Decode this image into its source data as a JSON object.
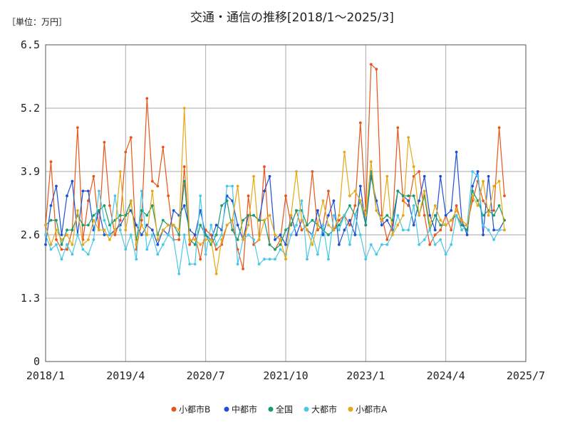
{
  "chart_data": {
    "type": "line",
    "title": "交通・通信の推移[2018/1～2025/3]",
    "unit_label": "［単位：万円］",
    "xlabel": "",
    "ylabel": "",
    "x_start": "2018/1",
    "x_end": "2025/3",
    "xlim_months": [
      0,
      90
    ],
    "ylim": [
      0,
      6.5
    ],
    "y_ticks": [
      "6.5",
      "5.2",
      "3.9",
      "2.6",
      "1.3",
      "0"
    ],
    "y_tick_values": [
      6.5,
      5.2,
      3.9,
      2.6,
      1.3,
      0
    ],
    "x_ticks": [
      "2018/1",
      "2019/4",
      "2020/7",
      "2021/10",
      "2023/1",
      "2024/4",
      "2025/7"
    ],
    "x_tick_months": [
      0,
      15,
      30,
      45,
      60,
      75,
      90
    ],
    "grid": true,
    "legend_position": "bottom-center",
    "series": [
      {
        "name": "小都市B",
        "color": "#e8561a",
        "values": [
          2.8,
          4.1,
          2.5,
          2.3,
          2.3,
          2.7,
          4.8,
          2.5,
          3.3,
          3.8,
          2.7,
          4.5,
          3.2,
          2.6,
          2.9,
          4.3,
          4.6,
          2.3,
          2.9,
          5.4,
          3.7,
          3.6,
          4.4,
          3.4,
          2.5,
          2.5,
          4.0,
          2.4,
          2.6,
          2.1,
          2.7,
          2.6,
          2.3,
          2.4,
          2.8,
          2.9,
          2.3,
          1.9,
          3.4,
          2.4,
          2.5,
          4.0,
          2.4,
          2.3,
          2.5,
          3.4,
          2.8,
          3.1,
          2.7,
          2.8,
          3.9,
          2.7,
          2.8,
          3.5,
          2.7,
          2.9,
          3.0,
          2.8,
          3.2,
          4.9,
          3.1,
          6.1,
          6.0,
          3.0,
          2.5,
          2.8,
          4.8,
          3.3,
          3.2,
          3.8,
          3.9,
          3.0,
          2.4,
          2.6,
          2.7,
          3.0,
          2.7,
          3.2,
          2.8,
          2.8,
          3.3,
          3.7,
          3.3,
          3.1,
          3.1,
          4.8,
          3.4
        ]
      },
      {
        "name": "中都市",
        "color": "#1f4fd6",
        "values": [
          2.4,
          3.2,
          3.6,
          2.6,
          3.4,
          3.7,
          2.6,
          3.5,
          3.5,
          2.7,
          3.1,
          2.6,
          2.6,
          2.7,
          2.8,
          3.0,
          3.1,
          2.8,
          2.6,
          2.8,
          2.7,
          2.4,
          2.7,
          2.6,
          3.1,
          3.0,
          3.2,
          2.7,
          2.6,
          3.1,
          2.6,
          2.5,
          2.8,
          2.7,
          3.4,
          3.3,
          2.8,
          2.5,
          3.0,
          3.0,
          2.9,
          3.5,
          3.8,
          2.5,
          2.6,
          2.4,
          3.0,
          2.6,
          2.9,
          2.7,
          2.6,
          3.1,
          2.6,
          3.0,
          3.3,
          2.4,
          2.7,
          2.9,
          2.6,
          3.6,
          2.8,
          3.8,
          3.3,
          2.8,
          2.9,
          2.7,
          3.5,
          3.4,
          3.3,
          2.8,
          3.3,
          3.8,
          3.0,
          2.7,
          3.8,
          3.0,
          3.1,
          4.3,
          2.9,
          2.6,
          3.6,
          3.9,
          2.6,
          3.8,
          2.7,
          2.7,
          2.9
        ]
      },
      {
        "name": "全国",
        "color": "#1a9c6c",
        "values": [
          2.8,
          2.9,
          2.9,
          2.4,
          2.7,
          2.7,
          3.0,
          2.8,
          2.8,
          3.0,
          3.1,
          3.2,
          2.8,
          2.9,
          3.0,
          3.0,
          3.3,
          2.5,
          3.1,
          3.0,
          3.2,
          2.6,
          2.9,
          2.8,
          2.8,
          2.6,
          3.7,
          2.5,
          2.4,
          2.8,
          2.6,
          2.4,
          2.6,
          3.2,
          3.3,
          2.7,
          2.5,
          2.9,
          3.0,
          3.0,
          2.9,
          2.9,
          2.4,
          2.3,
          2.4,
          2.7,
          2.8,
          3.1,
          3.1,
          2.8,
          2.9,
          2.8,
          2.7,
          2.6,
          2.7,
          2.8,
          3.0,
          3.2,
          3.0,
          3.3,
          2.8,
          3.9,
          3.1,
          2.9,
          3.0,
          2.9,
          3.5,
          3.4,
          3.4,
          3.4,
          3.0,
          3.4,
          2.7,
          3.0,
          2.8,
          2.8,
          2.9,
          3.0,
          2.8,
          2.7,
          3.5,
          3.3,
          3.0,
          3.1,
          3.0,
          3.2,
          2.9
        ]
      },
      {
        "name": "大都市",
        "color": "#48c8e8",
        "values": [
          2.6,
          2.3,
          2.4,
          2.1,
          2.4,
          2.2,
          2.6,
          2.3,
          2.2,
          2.5,
          3.5,
          2.9,
          2.6,
          3.4,
          2.7,
          2.3,
          2.6,
          2.1,
          3.5,
          2.3,
          2.6,
          2.2,
          2.4,
          2.6,
          2.5,
          1.8,
          2.6,
          2.0,
          2.0,
          3.4,
          2.2,
          2.8,
          2.4,
          2.6,
          3.6,
          3.6,
          2.0,
          2.5,
          2.6,
          2.5,
          2.0,
          2.1,
          2.1,
          2.1,
          2.3,
          2.2,
          2.6,
          2.8,
          3.3,
          2.1,
          2.6,
          2.2,
          2.8,
          2.1,
          3.0,
          2.7,
          3.0,
          2.4,
          3.0,
          2.6,
          2.1,
          2.4,
          2.2,
          2.4,
          2.4,
          2.6,
          3.0,
          2.7,
          2.7,
          3.2,
          2.4,
          2.5,
          2.7,
          2.4,
          2.5,
          2.2,
          2.4,
          3.0,
          2.7,
          2.8,
          3.9,
          3.8,
          2.8,
          2.7,
          2.5,
          2.7,
          2.7
        ]
      },
      {
        "name": "小都市A",
        "color": "#e6a817",
        "values": [
          2.8,
          2.4,
          2.7,
          2.5,
          2.6,
          2.4,
          3.1,
          2.4,
          2.5,
          2.9,
          2.7,
          2.7,
          2.5,
          2.7,
          3.9,
          2.7,
          3.3,
          2.4,
          2.8,
          2.6,
          3.5,
          2.5,
          2.7,
          2.8,
          2.8,
          2.7,
          5.2,
          2.5,
          2.5,
          2.4,
          2.5,
          2.5,
          1.8,
          2.5,
          2.8,
          2.9,
          3.6,
          2.5,
          2.8,
          3.8,
          2.5,
          2.9,
          3.0,
          2.6,
          2.5,
          2.1,
          3.0,
          3.9,
          2.9,
          2.7,
          2.4,
          2.8,
          3.3,
          2.8,
          2.7,
          3.0,
          4.3,
          3.4,
          3.5,
          3.3,
          3.0,
          4.1,
          3.1,
          2.9,
          3.8,
          2.6,
          2.8,
          3.0,
          4.6,
          4.0,
          3.0,
          3.5,
          2.8,
          3.2,
          2.9,
          2.8,
          2.9,
          3.1,
          2.9,
          2.8,
          3.4,
          3.2,
          3.7,
          3.0,
          3.6,
          3.7,
          2.7
        ]
      }
    ]
  }
}
